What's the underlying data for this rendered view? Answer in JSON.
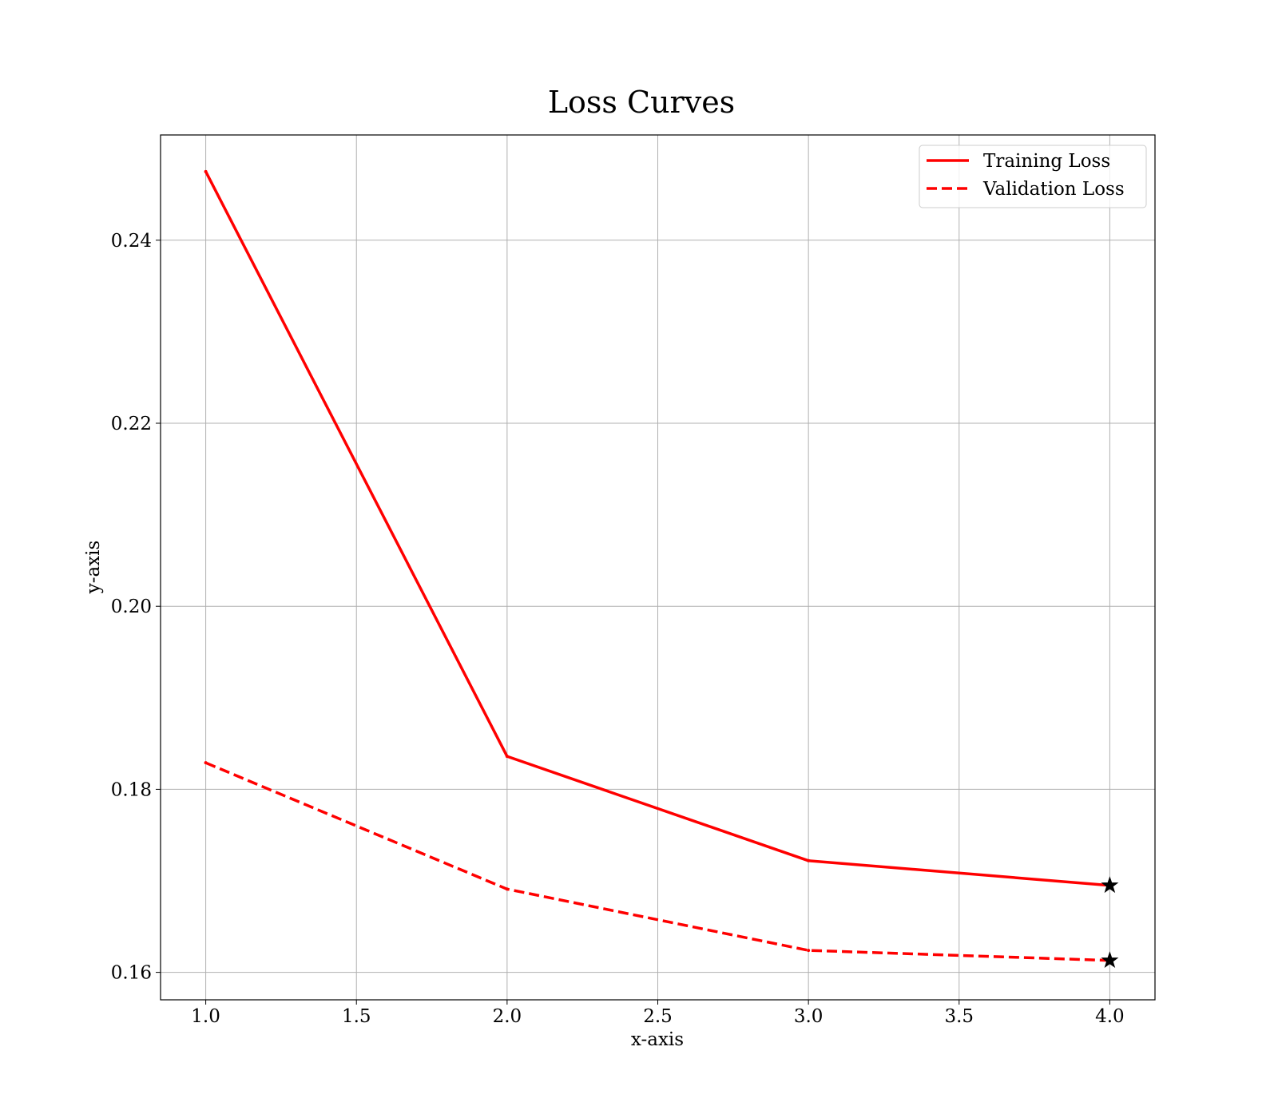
{
  "chart_data": {
    "type": "line",
    "title": "Loss Curves",
    "xlabel": "x-axis",
    "ylabel": "y-axis",
    "x": [
      1,
      2,
      3,
      4
    ],
    "xlim": [
      0.85,
      4.15
    ],
    "ylim": [
      0.157,
      0.2515
    ],
    "xticks": [
      "1.0",
      "1.5",
      "2.0",
      "2.5",
      "3.0",
      "3.5",
      "4.0"
    ],
    "yticks": [
      "0.16",
      "0.18",
      "0.20",
      "0.22",
      "0.24"
    ],
    "grid": true,
    "legend": "top-right",
    "series": [
      {
        "name": "Training Loss",
        "values": [
          0.2475,
          0.1836,
          0.1722,
          0.1695
        ],
        "color": "#ff0000",
        "style": "solid",
        "end_marker": "star"
      },
      {
        "name": "Validation Loss",
        "values": [
          0.1829,
          0.1691,
          0.1624,
          0.1613
        ],
        "color": "#ff0000",
        "style": "dashed",
        "end_marker": "star"
      }
    ]
  }
}
